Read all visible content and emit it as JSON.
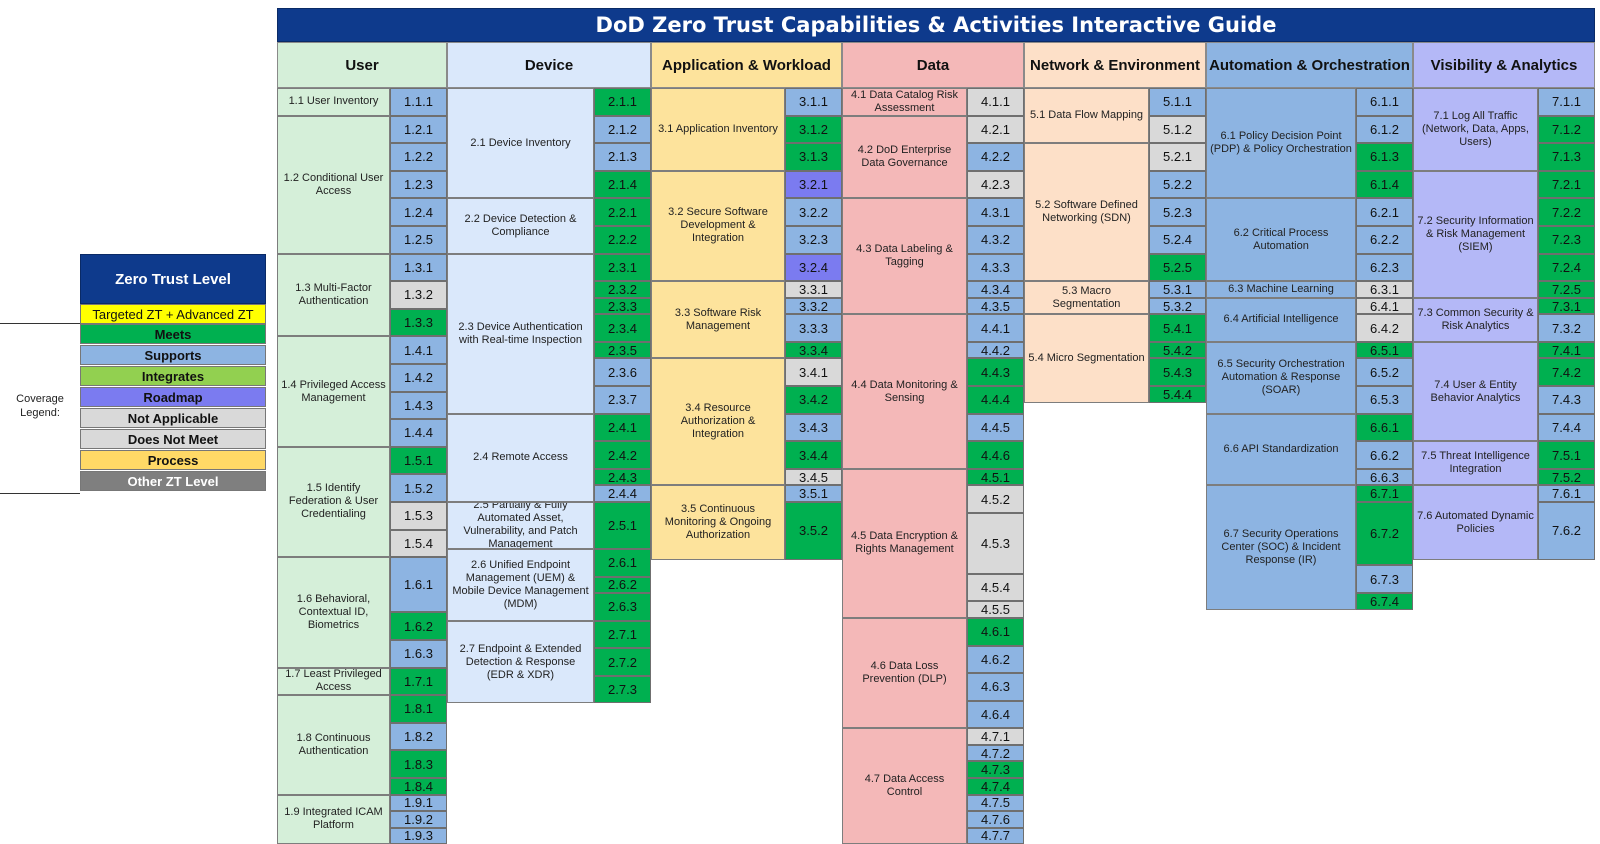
{
  "title": "DoD Zero Trust Capabilities & Activities Interactive Guide",
  "colors": {
    "title_bg": "#0e3a8c",
    "meets": "#00b050",
    "supports": "#8db4e2",
    "integrates": "#92d050",
    "roadmap": "#7b7bf0",
    "not_applicable": "#d9d9d9",
    "does_not_meet": "#d9d9d9",
    "process": "#ffd966",
    "other": "#7f7f7f"
  },
  "legend": {
    "level_title": "Zero Trust Level",
    "level_value": "Targeted ZT + Advanced ZT",
    "caption": "Coverage Legend:",
    "items": [
      {
        "label": "Meets",
        "status": "M"
      },
      {
        "label": "Supports",
        "status": "S"
      },
      {
        "label": "Integrates",
        "status": "I"
      },
      {
        "label": "Roadmap",
        "status": "R"
      },
      {
        "label": "Not Applicable",
        "status": "N"
      },
      {
        "label": "Does Not Meet",
        "status": "D"
      },
      {
        "label": "Process",
        "status": "P"
      },
      {
        "label": "Other ZT Level",
        "status": "O"
      }
    ]
  },
  "pillars": [
    {
      "name": "User",
      "color": "#d5efd9",
      "capabilities": [
        {
          "label": "1.1 User Inventory",
          "activities": [
            [
              "1.1.1",
              "S"
            ]
          ]
        },
        {
          "label": "1.2 Conditional User Access",
          "activities": [
            [
              "1.2.1",
              "S"
            ],
            [
              "1.2.2",
              "S"
            ],
            [
              "1.2.3",
              "S"
            ],
            [
              "1.2.4",
              "S"
            ],
            [
              "1.2.5",
              "S"
            ]
          ]
        },
        {
          "label": "1.3 Multi-Factor Authentication",
          "activities": [
            [
              "1.3.1",
              "S"
            ],
            [
              "1.3.2",
              "N"
            ],
            [
              "1.3.3",
              "M"
            ]
          ]
        },
        {
          "label": "1.4 Privileged Access Management",
          "activities": [
            [
              "1.4.1",
              "S"
            ],
            [
              "1.4.2",
              "S"
            ],
            [
              "1.4.3",
              "S"
            ],
            [
              "1.4.4",
              "S"
            ]
          ]
        },
        {
          "label": "1.5 Identify Federation & User Credentialing",
          "activities": [
            [
              "1.5.1",
              "M"
            ],
            [
              "1.5.2",
              "S"
            ],
            [
              "1.5.3",
              "N"
            ],
            [
              "1.5.4",
              "N"
            ]
          ]
        },
        {
          "label": "1.6 Behavioral, Contextual ID, Biometrics",
          "activities": [
            [
              "1.6.1",
              "S",
              2
            ],
            [
              "1.6.2",
              "M"
            ],
            [
              "1.6.3",
              "S"
            ]
          ]
        },
        {
          "label": "1.7 Least Privileged Access",
          "activities": [
            [
              "1.7.1",
              "M"
            ]
          ]
        },
        {
          "label": "1.8 Continuous Authentication",
          "activities": [
            [
              "1.8.1",
              "M"
            ],
            [
              "1.8.2",
              "S"
            ],
            [
              "1.8.3",
              "M"
            ],
            [
              "1.8.4",
              "M",
              0.6
            ]
          ]
        },
        {
          "label": "1.9 Integrated ICAM Platform",
          "activities": [
            [
              "1.9.1",
              "S",
              0.6
            ],
            [
              "1.9.2",
              "S",
              0.6
            ],
            [
              "1.9.3",
              "S",
              0.6
            ]
          ]
        }
      ]
    },
    {
      "name": "Device",
      "color": "#dae8fb",
      "capabilities": [
        {
          "label": "2.1 Device Inventory",
          "activities": [
            [
              "2.1.1",
              "M"
            ],
            [
              "2.1.2",
              "S"
            ],
            [
              "2.1.3",
              "S"
            ],
            [
              "2.1.4",
              "M"
            ]
          ]
        },
        {
          "label": "2.2 Device Detection & Compliance",
          "activities": [
            [
              "2.2.1",
              "M"
            ],
            [
              "2.2.2",
              "M"
            ]
          ]
        },
        {
          "label": "2.3 Device Authentication with Real-time Inspection",
          "activities": [
            [
              "2.3.1",
              "M"
            ],
            [
              "2.3.2",
              "M",
              0.6
            ],
            [
              "2.3.3",
              "M",
              0.6
            ],
            [
              "2.3.4",
              "M"
            ],
            [
              "2.3.5",
              "M",
              0.6
            ],
            [
              "2.3.6",
              "S"
            ],
            [
              "2.3.7",
              "S"
            ]
          ]
        },
        {
          "label": "2.4 Remote Access",
          "activities": [
            [
              "2.4.1",
              "M"
            ],
            [
              "2.4.2",
              "M"
            ],
            [
              "2.4.3",
              "M",
              0.6
            ],
            [
              "2.4.4",
              "S",
              0.6
            ]
          ]
        },
        {
          "label": "2.5 Partially & Fully Automated Asset, Vulnerability, and Patch Management",
          "activities": [
            [
              "2.5.1",
              "M",
              1.7
            ]
          ]
        },
        {
          "label": "2.6 Unified Endpoint Management (UEM) & Mobile Device Management (MDM)",
          "activities": [
            [
              "2.6.1",
              "M"
            ],
            [
              "2.6.2",
              "M",
              0.6
            ],
            [
              "2.6.3",
              "M"
            ]
          ]
        },
        {
          "label": "2.7 Endpoint & Extended Detection & Response (EDR & XDR)",
          "activities": [
            [
              "2.7.1",
              "M"
            ],
            [
              "2.7.2",
              "M"
            ],
            [
              "2.7.3",
              "M"
            ]
          ]
        }
      ]
    },
    {
      "name": "Application & Workload",
      "color": "#fde39c",
      "capabilities": [
        {
          "label": "3.1 Application Inventory",
          "activities": [
            [
              "3.1.1",
              "S"
            ],
            [
              "3.1.2",
              "M"
            ],
            [
              "3.1.3",
              "M"
            ]
          ]
        },
        {
          "label": "3.2 Secure Software Development & Integration",
          "activities": [
            [
              "3.2.1",
              "R"
            ],
            [
              "3.2.2",
              "S"
            ],
            [
              "3.2.3",
              "S"
            ],
            [
              "3.2.4",
              "R"
            ]
          ]
        },
        {
          "label": "3.3 Software Risk Management",
          "activities": [
            [
              "3.3.1",
              "N",
              0.6
            ],
            [
              "3.3.2",
              "S",
              0.6
            ],
            [
              "3.3.3",
              "S"
            ],
            [
              "3.3.4",
              "M",
              0.6
            ]
          ]
        },
        {
          "label": "3.4 Resource Authorization & Integration",
          "activities": [
            [
              "3.4.1",
              "N"
            ],
            [
              "3.4.2",
              "M"
            ],
            [
              "3.4.3",
              "S"
            ],
            [
              "3.4.4",
              "M"
            ],
            [
              "3.4.5",
              "N",
              0.6
            ]
          ]
        },
        {
          "label": "3.5 Continuous Monitoring & Ongoing Authorization",
          "activities": [
            [
              "3.5.1",
              "S",
              0.6
            ],
            [
              "3.5.2",
              "M",
              2.1
            ]
          ]
        }
      ]
    },
    {
      "name": "Data",
      "color": "#f4b8b8",
      "capabilities": [
        {
          "label": "4.1 Data Catalog Risk Assessment",
          "activities": [
            [
              "4.1.1",
              "N"
            ]
          ]
        },
        {
          "label": "4.2 DoD Enterprise Data Governance",
          "activities": [
            [
              "4.2.1",
              "N"
            ],
            [
              "4.2.2",
              "S"
            ],
            [
              "4.2.3",
              "N"
            ]
          ]
        },
        {
          "label": "4.3 Data Labeling & Tagging",
          "activities": [
            [
              "4.3.1",
              "S"
            ],
            [
              "4.3.2",
              "S"
            ],
            [
              "4.3.3",
              "S"
            ],
            [
              "4.3.4",
              "S",
              0.6
            ],
            [
              "4.3.5",
              "S",
              0.6
            ]
          ]
        },
        {
          "label": "4.4 Data Monitoring & Sensing",
          "activities": [
            [
              "4.4.1",
              "S"
            ],
            [
              "4.4.2",
              "S",
              0.6
            ],
            [
              "4.4.3",
              "M"
            ],
            [
              "4.4.4",
              "M"
            ],
            [
              "4.4.5",
              "S"
            ],
            [
              "4.4.6",
              "M"
            ]
          ]
        },
        {
          "label": "4.5 Data Encryption & Rights Management",
          "activities": [
            [
              "4.5.1",
              "M",
              0.6
            ],
            [
              "4.5.2",
              "N"
            ],
            [
              "4.5.3",
              "N",
              2.2
            ],
            [
              "4.5.4",
              "N"
            ],
            [
              "4.5.5",
              "N",
              0.6
            ]
          ]
        },
        {
          "label": "4.6 Data Loss Prevention (DLP)",
          "activities": [
            [
              "4.6.1",
              "M"
            ],
            [
              "4.6.2",
              "S"
            ],
            [
              "4.6.3",
              "S"
            ],
            [
              "4.6.4",
              "S"
            ]
          ]
        },
        {
          "label": "4.7 Data Access Control",
          "activities": [
            [
              "4.7.1",
              "N",
              0.6
            ],
            [
              "4.7.2",
              "S",
              0.6
            ],
            [
              "4.7.3",
              "M",
              0.6
            ],
            [
              "4.7.4",
              "M",
              0.6
            ],
            [
              "4.7.5",
              "S",
              0.6
            ],
            [
              "4.7.6",
              "S",
              0.6
            ],
            [
              "4.7.7",
              "S",
              0.6
            ]
          ]
        }
      ]
    },
    {
      "name": "Network & Environment",
      "color": "#fde0c8",
      "capabilities": [
        {
          "label": "5.1 Data Flow Mapping",
          "activities": [
            [
              "5.1.1",
              "S"
            ],
            [
              "5.1.2",
              "N"
            ]
          ]
        },
        {
          "label": "5.2 Software Defined Networking (SDN)",
          "activities": [
            [
              "5.2.1",
              "N"
            ],
            [
              "5.2.2",
              "S"
            ],
            [
              "5.2.3",
              "S"
            ],
            [
              "5.2.4",
              "S"
            ],
            [
              "5.2.5",
              "M"
            ]
          ]
        },
        {
          "label": "5.3 Macro Segmentation",
          "activities": [
            [
              "5.3.1",
              "S",
              0.6
            ],
            [
              "5.3.2",
              "S",
              0.6
            ]
          ]
        },
        {
          "label": "5.4 Micro Segmentation",
          "activities": [
            [
              "5.4.1",
              "M"
            ],
            [
              "5.4.2",
              "M",
              0.6
            ],
            [
              "5.4.3",
              "M"
            ],
            [
              "5.4.4",
              "M",
              0.6
            ]
          ]
        }
      ]
    },
    {
      "name": "Automation & Orchestration",
      "color": "#8db4e2",
      "capabilities": [
        {
          "label": "6.1 Policy Decision Point (PDP) & Policy Orchestration",
          "activities": [
            [
              "6.1.1",
              "S"
            ],
            [
              "6.1.2",
              "S"
            ],
            [
              "6.1.3",
              "M"
            ],
            [
              "6.1.4",
              "M"
            ]
          ]
        },
        {
          "label": "6.2 Critical Process Automation",
          "activities": [
            [
              "6.2.1",
              "S"
            ],
            [
              "6.2.2",
              "S"
            ],
            [
              "6.2.3",
              "S"
            ]
          ]
        },
        {
          "label": "6.3 Machine Learning",
          "activities": [
            [
              "6.3.1",
              "N",
              0.6
            ]
          ]
        },
        {
          "label": "6.4 Artificial Intelligence",
          "activities": [
            [
              "6.4.1",
              "N",
              0.6
            ],
            [
              "6.4.2",
              "N"
            ]
          ]
        },
        {
          "label": "6.5 Security Orchestration Automation & Response (SOAR)",
          "activities": [
            [
              "6.5.1",
              "M",
              0.6
            ],
            [
              "6.5.2",
              "S"
            ],
            [
              "6.5.3",
              "S"
            ]
          ]
        },
        {
          "label": "6.6 API Standardization",
          "activities": [
            [
              "6.6.1",
              "M"
            ],
            [
              "6.6.2",
              "S"
            ],
            [
              "6.6.3",
              "S",
              0.6
            ]
          ]
        },
        {
          "label": "6.7 Security Operations Center (SOC) & Incident Response (IR)",
          "activities": [
            [
              "6.7.1",
              "M",
              0.6
            ],
            [
              "6.7.2",
              "M",
              2.3
            ],
            [
              "6.7.3",
              "S"
            ],
            [
              "6.7.4",
              "M",
              0.6
            ]
          ]
        }
      ]
    },
    {
      "name": "Visibility & Analytics",
      "color": "#b4b8f7",
      "capabilities": [
        {
          "label": "7.1 Log All Traffic (Network, Data, Apps, Users)",
          "activities": [
            [
              "7.1.1",
              "S"
            ],
            [
              "7.1.2",
              "M"
            ],
            [
              "7.1.3",
              "M"
            ]
          ]
        },
        {
          "label": "7.2 Security Information & Risk Management (SIEM)",
          "activities": [
            [
              "7.2.1",
              "M"
            ],
            [
              "7.2.2",
              "M"
            ],
            [
              "7.2.3",
              "M"
            ],
            [
              "7.2.4",
              "M"
            ],
            [
              "7.2.5",
              "M",
              0.6
            ]
          ]
        },
        {
          "label": "7.3 Common Security & Risk Analytics",
          "activities": [
            [
              "7.3.1",
              "M",
              0.6
            ],
            [
              "7.3.2",
              "S"
            ]
          ]
        },
        {
          "label": "7.4 User & Entity Behavior Analytics",
          "activities": [
            [
              "7.4.1",
              "M",
              0.6
            ],
            [
              "7.4.2",
              "M"
            ],
            [
              "7.4.3",
              "S"
            ],
            [
              "7.4.4",
              "S"
            ]
          ]
        },
        {
          "label": "7.5 Threat Intelligence Integration",
          "activities": [
            [
              "7.5.1",
              "M"
            ],
            [
              "7.5.2",
              "M",
              0.6
            ]
          ]
        },
        {
          "label": "7.6 Automated Dynamic Policies",
          "activities": [
            [
              "7.6.1",
              "S",
              0.6
            ],
            [
              "7.6.2",
              "S",
              2.1
            ]
          ]
        }
      ]
    }
  ]
}
